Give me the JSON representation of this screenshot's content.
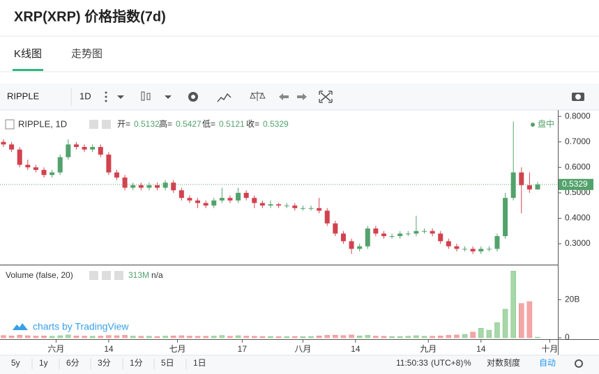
{
  "header": {
    "title": "XRP(XRP) 价格指数(7d)"
  },
  "tabs": [
    "K线图",
    "走势图"
  ],
  "toolbar": {
    "symbol": "RIPPLE",
    "interval": "1D"
  },
  "chart_data": {
    "type": "candlestick",
    "legend_title": "RIPPLE, 1D",
    "legend_labels": [
      "开=",
      "高=",
      "低=",
      "收="
    ],
    "status": "盘中",
    "up_color": "#53a26c",
    "down_color": "#d2424e",
    "xlim": [
      -0.86,
      137
    ],
    "xticks": [
      {
        "value": 13,
        "label": "六月"
      },
      {
        "value": 26,
        "label": "14"
      },
      {
        "value": 43,
        "label": "七月"
      },
      {
        "value": 59,
        "label": "17"
      },
      {
        "value": 74,
        "label": "八月"
      },
      {
        "value": 87,
        "label": "14"
      },
      {
        "value": 105,
        "label": "九月"
      },
      {
        "value": 118,
        "label": "14"
      },
      {
        "value": 135,
        "label": "十月"
      }
    ],
    "ylim": [
      0.218,
      0.825
    ],
    "yticks": [
      {
        "value": 0.3,
        "label": "0.3000"
      },
      {
        "value": 0.4,
        "label": "0.4000"
      },
      {
        "value": 0.5,
        "label": "0.5000"
      },
      {
        "value": 0.6,
        "label": "0.6000"
      },
      {
        "value": 0.7,
        "label": "0.7000"
      },
      {
        "value": 0.8,
        "label": "0.8000"
      }
    ],
    "candles": [
      [
        0,
        0.7,
        0.71,
        0.68,
        0.69
      ],
      [
        2,
        0.69,
        0.7,
        0.66,
        0.67
      ],
      [
        4,
        0.67,
        0.68,
        0.6,
        0.61
      ],
      [
        6,
        0.61,
        0.63,
        0.59,
        0.6
      ],
      [
        8,
        0.6,
        0.61,
        0.58,
        0.59
      ],
      [
        10,
        0.59,
        0.6,
        0.56,
        0.57
      ],
      [
        12,
        0.57,
        0.59,
        0.56,
        0.58
      ],
      [
        14,
        0.58,
        0.65,
        0.57,
        0.64
      ],
      [
        16,
        0.64,
        0.71,
        0.63,
        0.69
      ],
      [
        18,
        0.69,
        0.7,
        0.67,
        0.68
      ],
      [
        20,
        0.68,
        0.69,
        0.66,
        0.67
      ],
      [
        22,
        0.67,
        0.69,
        0.66,
        0.68
      ],
      [
        24,
        0.68,
        0.69,
        0.64,
        0.65
      ],
      [
        26,
        0.65,
        0.66,
        0.57,
        0.58
      ],
      [
        28,
        0.58,
        0.59,
        0.55,
        0.56
      ],
      [
        30,
        0.56,
        0.57,
        0.51,
        0.52
      ],
      [
        32,
        0.52,
        0.54,
        0.51,
        0.53
      ],
      [
        34,
        0.53,
        0.54,
        0.51,
        0.52
      ],
      [
        36,
        0.52,
        0.54,
        0.51,
        0.53
      ],
      [
        38,
        0.53,
        0.54,
        0.51,
        0.52
      ],
      [
        40,
        0.52,
        0.55,
        0.51,
        0.54
      ],
      [
        42,
        0.54,
        0.55,
        0.5,
        0.51
      ],
      [
        44,
        0.51,
        0.52,
        0.47,
        0.48
      ],
      [
        46,
        0.48,
        0.49,
        0.46,
        0.47
      ],
      [
        48,
        0.47,
        0.48,
        0.44,
        0.46
      ],
      [
        50,
        0.46,
        0.47,
        0.44,
        0.45
      ],
      [
        52,
        0.45,
        0.48,
        0.44,
        0.47
      ],
      [
        54,
        0.47,
        0.52,
        0.46,
        0.48
      ],
      [
        56,
        0.48,
        0.49,
        0.46,
        0.47
      ],
      [
        58,
        0.47,
        0.52,
        0.46,
        0.5
      ],
      [
        60,
        0.5,
        0.51,
        0.47,
        0.48
      ],
      [
        62,
        0.48,
        0.49,
        0.44,
        0.46
      ],
      [
        64,
        0.46,
        0.47,
        0.44,
        0.45
      ],
      [
        66,
        0.45,
        0.47,
        0.44,
        0.455
      ],
      [
        68,
        0.455,
        0.46,
        0.44,
        0.45
      ],
      [
        70,
        0.45,
        0.46,
        0.44,
        0.45
      ],
      [
        72,
        0.45,
        0.46,
        0.43,
        0.44
      ],
      [
        74,
        0.44,
        0.45,
        0.43,
        0.44
      ],
      [
        76,
        0.44,
        0.45,
        0.43,
        0.44
      ],
      [
        78,
        0.44,
        0.48,
        0.42,
        0.43
      ],
      [
        80,
        0.43,
        0.44,
        0.37,
        0.38
      ],
      [
        82,
        0.38,
        0.39,
        0.33,
        0.34
      ],
      [
        84,
        0.34,
        0.35,
        0.3,
        0.31
      ],
      [
        86,
        0.31,
        0.32,
        0.26,
        0.28
      ],
      [
        88,
        0.28,
        0.3,
        0.27,
        0.29
      ],
      [
        90,
        0.29,
        0.37,
        0.28,
        0.36
      ],
      [
        92,
        0.36,
        0.37,
        0.33,
        0.34
      ],
      [
        94,
        0.34,
        0.35,
        0.32,
        0.33
      ],
      [
        96,
        0.33,
        0.34,
        0.32,
        0.33
      ],
      [
        98,
        0.33,
        0.35,
        0.32,
        0.34
      ],
      [
        100,
        0.34,
        0.35,
        0.33,
        0.34
      ],
      [
        102,
        0.34,
        0.41,
        0.33,
        0.35
      ],
      [
        104,
        0.35,
        0.36,
        0.34,
        0.35
      ],
      [
        106,
        0.35,
        0.36,
        0.33,
        0.34
      ],
      [
        108,
        0.34,
        0.35,
        0.3,
        0.31
      ],
      [
        110,
        0.31,
        0.32,
        0.28,
        0.29
      ],
      [
        112,
        0.29,
        0.3,
        0.27,
        0.28
      ],
      [
        114,
        0.28,
        0.29,
        0.27,
        0.28
      ],
      [
        116,
        0.28,
        0.29,
        0.26,
        0.27
      ],
      [
        118,
        0.27,
        0.29,
        0.26,
        0.28
      ],
      [
        120,
        0.28,
        0.29,
        0.27,
        0.28
      ],
      [
        122,
        0.28,
        0.34,
        0.27,
        0.33
      ],
      [
        124,
        0.33,
        0.5,
        0.32,
        0.48
      ],
      [
        126,
        0.48,
        0.78,
        0.47,
        0.58
      ],
      [
        128,
        0.58,
        0.6,
        0.42,
        0.53
      ],
      [
        130,
        0.53,
        0.58,
        0.5,
        0.5132
      ],
      [
        132,
        0.5132,
        0.5427,
        0.5121,
        0.5329
      ]
    ],
    "volume": {
      "title": "Volume (false, 20)",
      "na": "n/a",
      "ylim": [
        0,
        38
      ],
      "yticks": [
        0,
        {
          "value": 20,
          "label": "20B"
        }
      ],
      "values": [
        1.2,
        1.0,
        1.4,
        1.1,
        0.9,
        1.0,
        0.8,
        1.1,
        1.5,
        1.0,
        0.9,
        0.8,
        0.9,
        1.2,
        1.1,
        1.3,
        0.9,
        0.8,
        0.8,
        0.7,
        0.9,
        1.0,
        1.1,
        0.9,
        0.8,
        0.8,
        0.9,
        1.2,
        0.8,
        1.1,
        0.9,
        0.8,
        0.7,
        0.7,
        0.6,
        0.6,
        0.7,
        0.6,
        0.7,
        1.0,
        1.3,
        1.4,
        1.2,
        1.5,
        1.0,
        1.3,
        0.9,
        0.8,
        0.7,
        0.7,
        0.8,
        1.1,
        0.8,
        0.8,
        1.0,
        1.3,
        1.5,
        1.8,
        3.0,
        5.0,
        4.0,
        8.0,
        15,
        35,
        18,
        19,
        0.313
      ],
      "value_labels": [
        null,
        null,
        null,
        null,
        null,
        null,
        null,
        null,
        null,
        null,
        null,
        null,
        null,
        null,
        null,
        null,
        null,
        null,
        null,
        null,
        null,
        null,
        null,
        null,
        null,
        null,
        null,
        null,
        null,
        null,
        null,
        null,
        null,
        null,
        null,
        null,
        null,
        null,
        null,
        null,
        null,
        null,
        null,
        null,
        null,
        null,
        null,
        null,
        null,
        null,
        null,
        null,
        null,
        null,
        null,
        null,
        null,
        null,
        null,
        null,
        null,
        null,
        null,
        null,
        null,
        null,
        "313M"
      ]
    },
    "watermark": "charts by TradingView"
  },
  "footer": {
    "ranges": [
      "5y",
      "1y",
      "6分",
      "3分",
      "1分",
      "5日",
      "1日"
    ],
    "time": "11:50:33",
    "timezone": "(UTC+8)",
    "percent": "%",
    "log": "对数刻度",
    "auto": "自动"
  }
}
